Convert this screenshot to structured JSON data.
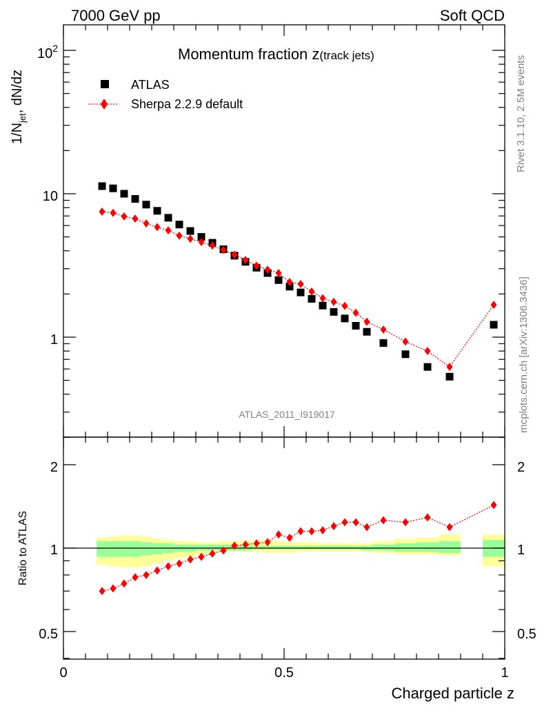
{
  "header": {
    "left": "7000 GeV pp",
    "right": "Soft QCD"
  },
  "title": {
    "main": "Momentum fraction ",
    "z": "z",
    "sub": "(track jets)"
  },
  "ylabel_main": {
    "prefix": "1/N",
    "sub": "jet",
    "suffix": " dN/dz"
  },
  "side_texts": {
    "rivet": "Rivet 3.1.10,  2.5M events",
    "mcplots": "mcplots.cern.ch [arXiv:1306.3436]"
  },
  "analysis_id": "ATLAS_2011_I919017",
  "legend": [
    {
      "label": "ATLAS",
      "marker": "square",
      "color": "#000000"
    },
    {
      "label": "Sherpa 2.2.9 default",
      "marker": "diamond",
      "color": "#ff0000",
      "line": "dotted"
    }
  ],
  "chart_data": {
    "type": "scatter",
    "xlabel": "Charged particle z",
    "xlim": [
      0,
      1
    ],
    "xticks": [
      "0",
      "0.5",
      "1"
    ],
    "main": {
      "yscale": "log",
      "ylim": [
        0.3,
        150
      ],
      "yticks": [
        "1",
        "10",
        "10^2"
      ],
      "series": [
        {
          "name": "ATLAS",
          "x": [
            0.0875,
            0.1125,
            0.1375,
            0.1625,
            0.1875,
            0.2125,
            0.2375,
            0.2625,
            0.2875,
            0.3125,
            0.3375,
            0.3625,
            0.3875,
            0.4125,
            0.4375,
            0.4625,
            0.4875,
            0.5125,
            0.5375,
            0.5625,
            0.5875,
            0.6125,
            0.6375,
            0.6625,
            0.6875,
            0.725,
            0.775,
            0.825,
            0.875,
            0.975
          ],
          "y": [
            11.3,
            10.9,
            10.0,
            9.2,
            8.4,
            7.6,
            6.8,
            6.1,
            5.5,
            5.0,
            4.55,
            4.1,
            3.7,
            3.35,
            3.05,
            2.8,
            2.5,
            2.25,
            2.05,
            1.85,
            1.66,
            1.5,
            1.35,
            1.2,
            1.09,
            0.91,
            0.76,
            0.62,
            0.53,
            1.22
          ]
        },
        {
          "name": "Sherpa 2.2.9 default",
          "x": [
            0.0875,
            0.1125,
            0.1375,
            0.1625,
            0.1875,
            0.2125,
            0.2375,
            0.2625,
            0.2875,
            0.3125,
            0.3375,
            0.3625,
            0.3875,
            0.4125,
            0.4375,
            0.4625,
            0.4875,
            0.5125,
            0.5375,
            0.5625,
            0.5875,
            0.6125,
            0.6375,
            0.6625,
            0.6875,
            0.725,
            0.775,
            0.825,
            0.875,
            0.975
          ],
          "y": [
            7.5,
            7.35,
            6.95,
            6.7,
            6.2,
            5.85,
            5.55,
            5.1,
            4.85,
            4.6,
            4.35,
            4.05,
            3.75,
            3.45,
            3.15,
            2.95,
            2.8,
            2.42,
            2.35,
            2.08,
            1.87,
            1.76,
            1.65,
            1.48,
            1.28,
            1.13,
            0.93,
            0.8,
            0.62,
            1.68
          ]
        }
      ]
    },
    "ratio": {
      "ylabel": "Ratio to ATLAS",
      "yscale": "log",
      "ylim": [
        0.4,
        2.4
      ],
      "yticks": [
        "0.5",
        "1",
        "2"
      ],
      "series": [
        {
          "name": "Sherpa 2.2.9 default",
          "x": [
            0.0875,
            0.1125,
            0.1375,
            0.1625,
            0.1875,
            0.2125,
            0.2375,
            0.2625,
            0.2875,
            0.3125,
            0.3375,
            0.3625,
            0.3875,
            0.4125,
            0.4375,
            0.4625,
            0.4875,
            0.5125,
            0.5375,
            0.5625,
            0.5875,
            0.6125,
            0.6375,
            0.6625,
            0.6875,
            0.725,
            0.775,
            0.825,
            0.875,
            0.975
          ],
          "y": [
            0.7,
            0.715,
            0.745,
            0.785,
            0.8,
            0.83,
            0.86,
            0.88,
            0.91,
            0.93,
            0.955,
            0.98,
            1.02,
            1.03,
            1.04,
            1.05,
            1.12,
            1.09,
            1.15,
            1.15,
            1.16,
            1.2,
            1.24,
            1.24,
            1.19,
            1.26,
            1.24,
            1.29,
            1.19,
            1.43
          ]
        }
      ],
      "bands": {
        "x0": [
          0.075,
          0.1,
          0.125,
          0.15,
          0.175,
          0.2,
          0.225,
          0.25,
          0.275,
          0.3,
          0.325,
          0.35,
          0.375,
          0.4,
          0.425,
          0.45,
          0.475,
          0.5,
          0.525,
          0.55,
          0.575,
          0.6,
          0.625,
          0.65,
          0.675,
          0.7,
          0.75,
          0.8,
          0.85,
          0.95
        ],
        "x1": [
          0.1,
          0.125,
          0.15,
          0.175,
          0.2,
          0.225,
          0.25,
          0.275,
          0.3,
          0.325,
          0.35,
          0.375,
          0.4,
          0.425,
          0.45,
          0.475,
          0.5,
          0.525,
          0.55,
          0.575,
          0.6,
          0.625,
          0.65,
          0.675,
          0.7,
          0.75,
          0.8,
          0.85,
          0.9,
          1.0
        ],
        "yellow_lo": [
          0.87,
          0.86,
          0.85,
          0.85,
          0.86,
          0.88,
          0.9,
          0.92,
          0.93,
          0.95,
          0.96,
          0.97,
          0.97,
          0.97,
          0.97,
          0.96,
          0.96,
          0.96,
          0.97,
          0.97,
          0.97,
          0.97,
          0.97,
          0.97,
          0.97,
          0.96,
          0.95,
          0.95,
          0.94,
          0.86
        ],
        "yellow_hi": [
          1.09,
          1.1,
          1.11,
          1.11,
          1.1,
          1.08,
          1.07,
          1.06,
          1.06,
          1.05,
          1.05,
          1.06,
          1.06,
          1.06,
          1.06,
          1.07,
          1.06,
          1.05,
          1.05,
          1.05,
          1.04,
          1.04,
          1.04,
          1.04,
          1.04,
          1.06,
          1.08,
          1.09,
          1.12,
          1.12
        ],
        "green_lo": [
          0.93,
          0.93,
          0.93,
          0.93,
          0.94,
          0.95,
          0.96,
          0.97,
          0.97,
          0.98,
          0.98,
          0.98,
          0.98,
          0.98,
          0.99,
          0.99,
          0.99,
          0.99,
          0.99,
          0.99,
          0.99,
          0.99,
          0.99,
          0.99,
          0.98,
          0.98,
          0.97,
          0.97,
          0.96,
          0.93
        ],
        "green_hi": [
          1.06,
          1.06,
          1.06,
          1.06,
          1.05,
          1.04,
          1.04,
          1.03,
          1.03,
          1.03,
          1.03,
          1.03,
          1.03,
          1.03,
          1.02,
          1.02,
          1.02,
          1.02,
          1.02,
          1.02,
          1.02,
          1.02,
          1.02,
          1.02,
          1.02,
          1.03,
          1.04,
          1.05,
          1.06,
          1.07
        ]
      }
    }
  }
}
